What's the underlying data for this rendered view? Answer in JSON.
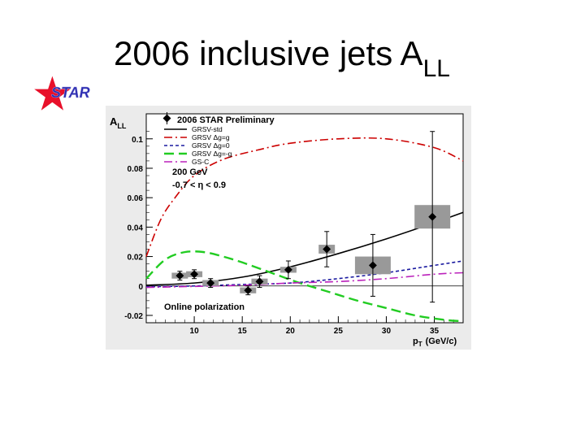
{
  "slide": {
    "title_main": "2006 inclusive jets A",
    "title_sub": "LL",
    "logo_text": "STAR"
  },
  "chart_data": {
    "type": "scatter",
    "title": "2006 STAR Preliminary",
    "ylabel_main": "A",
    "ylabel_sub": "LL",
    "xlabel_main": "p",
    "xlabel_sub": "T",
    "xlabel_unit": "(GeV/c)",
    "xlim": [
      5,
      38
    ],
    "ylim": [
      -0.025,
      0.117
    ],
    "xticks": [
      10,
      15,
      20,
      25,
      30,
      35
    ],
    "yticks": [
      -0.02,
      0,
      0.02,
      0.04,
      0.06,
      0.08,
      0.1
    ],
    "ytick_labels": [
      "-0.02",
      "0",
      "0.02",
      "0.04",
      "0.06",
      "0.08",
      "0.1"
    ],
    "annotations": {
      "energy": "200 GeV",
      "eta": "-0.7 < η < 0.9",
      "polarization": "Online polarization"
    },
    "legend": [
      {
        "label": "GRSV-std",
        "color": "#000000",
        "dash": "solid"
      },
      {
        "label": "GRSV Δg=g",
        "color": "#cc0000",
        "dash": "dashdot"
      },
      {
        "label": "GRSV Δg=0",
        "color": "#1a1aa0",
        "dash": "dashed"
      },
      {
        "label": "GRSV Δg=-g",
        "color": "#22cc22",
        "dash": "longdash"
      },
      {
        "label": "GS-C",
        "color": "#bb22bb",
        "dash": "dashdot"
      }
    ],
    "points": [
      {
        "x": 8.5,
        "y": 0.007,
        "err": 0.003,
        "syst": 0.002
      },
      {
        "x": 10.0,
        "y": 0.008,
        "err": 0.003,
        "syst": 0.002
      },
      {
        "x": 11.7,
        "y": 0.002,
        "err": 0.003,
        "syst": 0.002
      },
      {
        "x": 15.6,
        "y": -0.003,
        "err": 0.003,
        "syst": 0.002
      },
      {
        "x": 16.8,
        "y": 0.003,
        "err": 0.004,
        "syst": 0.002
      },
      {
        "x": 19.8,
        "y": 0.011,
        "err": 0.006,
        "syst": 0.002
      },
      {
        "x": 23.8,
        "y": 0.025,
        "err": 0.012,
        "syst": 0.003
      },
      {
        "x": 28.6,
        "y": 0.014,
        "err": 0.021,
        "syst": 0.006
      },
      {
        "x": 34.8,
        "y": 0.047,
        "err": 0.058,
        "syst": 0.008
      }
    ],
    "series": [
      {
        "name": "GRSV-std",
        "x": [
          5,
          10,
          15,
          20,
          25,
          30,
          35,
          38
        ],
        "y": [
          0.0005,
          0.002,
          0.006,
          0.013,
          0.022,
          0.032,
          0.043,
          0.05
        ]
      },
      {
        "name": "GRSV Δg=g",
        "x": [
          5,
          6.5,
          8,
          10,
          13,
          17,
          20,
          25,
          30,
          35,
          38
        ],
        "y": [
          0.02,
          0.045,
          0.06,
          0.075,
          0.086,
          0.093,
          0.097,
          0.1,
          0.1,
          0.094,
          0.085
        ]
      },
      {
        "name": "GRSV Δg=0",
        "x": [
          5,
          10,
          15,
          20,
          25,
          30,
          35,
          38
        ],
        "y": [
          -0.0005,
          0.0,
          0.001,
          0.002,
          0.005,
          0.009,
          0.014,
          0.017
        ]
      },
      {
        "name": "GRSV Δg=-g",
        "x": [
          5,
          7,
          9,
          11,
          13,
          15,
          18,
          21,
          24,
          27,
          30,
          33,
          36,
          38
        ],
        "y": [
          0.005,
          0.018,
          0.023,
          0.023,
          0.02,
          0.016,
          0.009,
          0.002,
          -0.004,
          -0.01,
          -0.015,
          -0.02,
          -0.023,
          -0.024
        ]
      },
      {
        "name": "GS-C",
        "x": [
          5,
          10,
          15,
          20,
          25,
          30,
          35,
          38
        ],
        "y": [
          -0.001,
          -0.0003,
          0.0005,
          0.002,
          0.003,
          0.005,
          0.008,
          0.009
        ]
      }
    ]
  }
}
